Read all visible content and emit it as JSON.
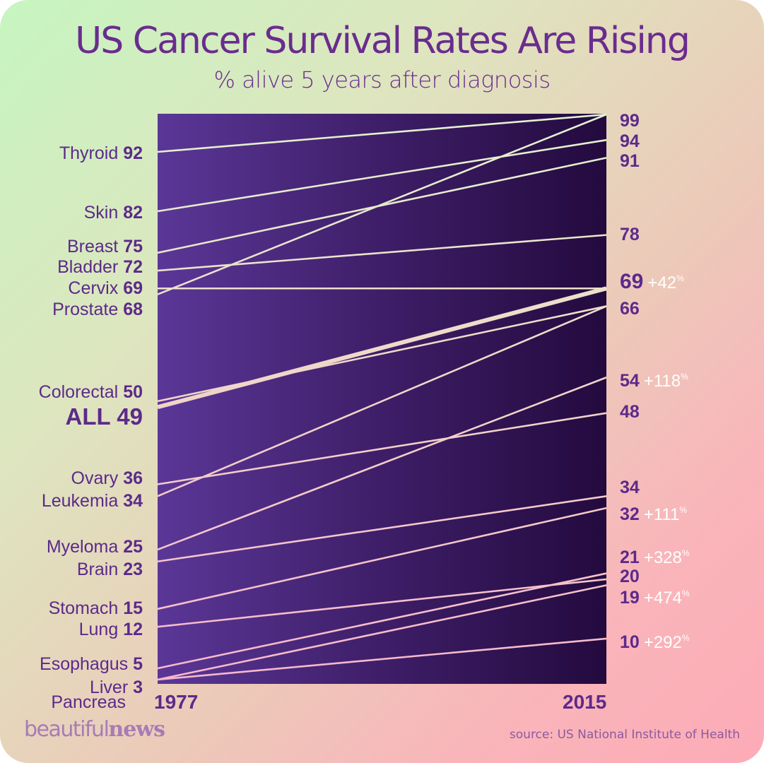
{
  "header": {
    "title": "US Cancer Survival Rates Are Rising",
    "subtitle": "% alive 5 years after diagnosis"
  },
  "footer": {
    "logo_light": "beautiful",
    "logo_bold": "news",
    "source": "source: US National Institute of Health"
  },
  "colors": {
    "text": "#5c2a8a",
    "line_top": "#e6f2cf",
    "line_bottom": "#f7b8cc",
    "plot_left": "#5a3797",
    "plot_right": "#230a3e"
  },
  "chart_data": {
    "type": "slope",
    "title": "US Cancer Survival Rates Are Rising",
    "subtitle": "% alive 5 years after diagnosis",
    "x": [
      "1977",
      "2015"
    ],
    "ylim": [
      0,
      100
    ],
    "series": [
      {
        "name": "Thyroid",
        "start": 92,
        "end": 99
      },
      {
        "name": "Skin",
        "start": 82,
        "end": 94
      },
      {
        "name": "Breast",
        "start": 75,
        "end": 91
      },
      {
        "name": "Bladder",
        "start": 72,
        "end": 78
      },
      {
        "name": "Cervix",
        "start": 69,
        "end": 69
      },
      {
        "name": "Prostate",
        "start": 68,
        "end": 99
      },
      {
        "name": "Colorectal",
        "start": 50,
        "end": 66
      },
      {
        "name": "ALL",
        "start": 49,
        "end": 69,
        "highlight": true
      },
      {
        "name": "Ovary",
        "start": 36,
        "end": 48
      },
      {
        "name": "Leukemia",
        "start": 34,
        "end": 66
      },
      {
        "name": "Myeloma",
        "start": 25,
        "end": 54
      },
      {
        "name": "Brain",
        "start": 23,
        "end": 34
      },
      {
        "name": "Stomach",
        "start": 15,
        "end": 32
      },
      {
        "name": "Lung",
        "start": 12,
        "end": 20
      },
      {
        "name": "Esophagus",
        "start": 5,
        "end": 21
      },
      {
        "name": "Liver",
        "start": 3,
        "end": 19
      },
      {
        "name": "Pancreas",
        "start": 3,
        "end": 10
      }
    ],
    "left_labels": [
      {
        "name": "Thyroid",
        "value": "92"
      },
      {
        "name": "Skin",
        "value": "82"
      },
      {
        "name": "Breast",
        "value": "75"
      },
      {
        "name": "Bladder",
        "value": "72"
      },
      {
        "name": "Cervix",
        "value": "69"
      },
      {
        "name": "Prostate",
        "value": "68"
      },
      {
        "name": "Colorectal",
        "value": "50"
      },
      {
        "name": "ALL",
        "value": "49",
        "big": true
      },
      {
        "name": "Ovary",
        "value": "36"
      },
      {
        "name": "Leukemia",
        "value": "34"
      },
      {
        "name": "Myeloma",
        "value": "25"
      },
      {
        "name": "Brain",
        "value": "23"
      },
      {
        "name": "Stomach",
        "value": "15"
      },
      {
        "name": "Lung",
        "value": "12"
      },
      {
        "name": "Esophagus",
        "value": "5"
      },
      {
        "name": "Liver",
        "value": "3"
      },
      {
        "name": "Pancreas",
        "value": ""
      }
    ],
    "right_labels": [
      {
        "value": "99",
        "change": ""
      },
      {
        "value": "94",
        "change": ""
      },
      {
        "value": "91",
        "change": ""
      },
      {
        "value": "78",
        "change": ""
      },
      {
        "value": "69",
        "change": "+42",
        "big": true
      },
      {
        "value": "66",
        "change": ""
      },
      {
        "value": "54",
        "change": "+118"
      },
      {
        "value": "48",
        "change": ""
      },
      {
        "value": "34",
        "change": ""
      },
      {
        "value": "32",
        "change": "+111"
      },
      {
        "value": "21",
        "change": "+328"
      },
      {
        "value": "20",
        "change": ""
      },
      {
        "value": "19",
        "change": "+474"
      },
      {
        "value": "10",
        "change": "+292"
      }
    ],
    "percent_sign": "%"
  }
}
